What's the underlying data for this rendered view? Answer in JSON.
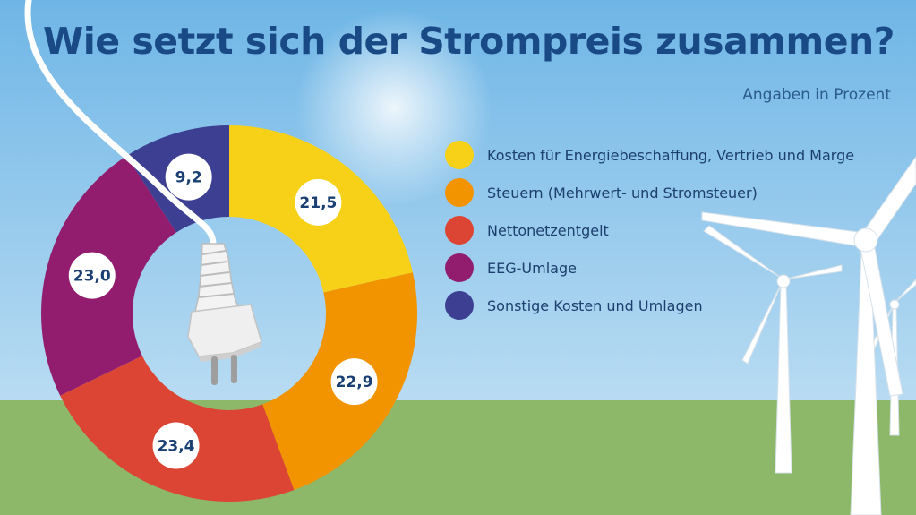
{
  "colors": {
    "sky_top": "#6fb6e6",
    "sky_bottom": "#cde6f6",
    "grass": "#8db86a",
    "title": "#1a4a86"
  },
  "chart_data": {
    "type": "pie",
    "donut": true,
    "title": "Wie setzt sich der Strompreis zusammen?",
    "subtitle": "Angaben in Prozent",
    "legend_position": "right",
    "start": "top, clockwise",
    "slices": [
      {
        "label": "Kosten für Energiebeschaffung, Vertrieb und Marge",
        "value": 21.5,
        "value_label": "21,5",
        "color": "#f7d117"
      },
      {
        "label": "Steuern (Mehrwert- und Stromsteuer)",
        "value": 22.9,
        "value_label": "22,9",
        "color": "#f19400"
      },
      {
        "label": "Nettonetzentgelt",
        "value": 23.4,
        "value_label": "23,4",
        "color": "#dc4534"
      },
      {
        "label": "EEG-Umlage",
        "value": 23.0,
        "value_label": "23,0",
        "color": "#921d6e"
      },
      {
        "label": "Sonstige Kosten und Umlagen",
        "value": 9.2,
        "value_label": "9,2",
        "color": "#3c3f92"
      }
    ]
  }
}
